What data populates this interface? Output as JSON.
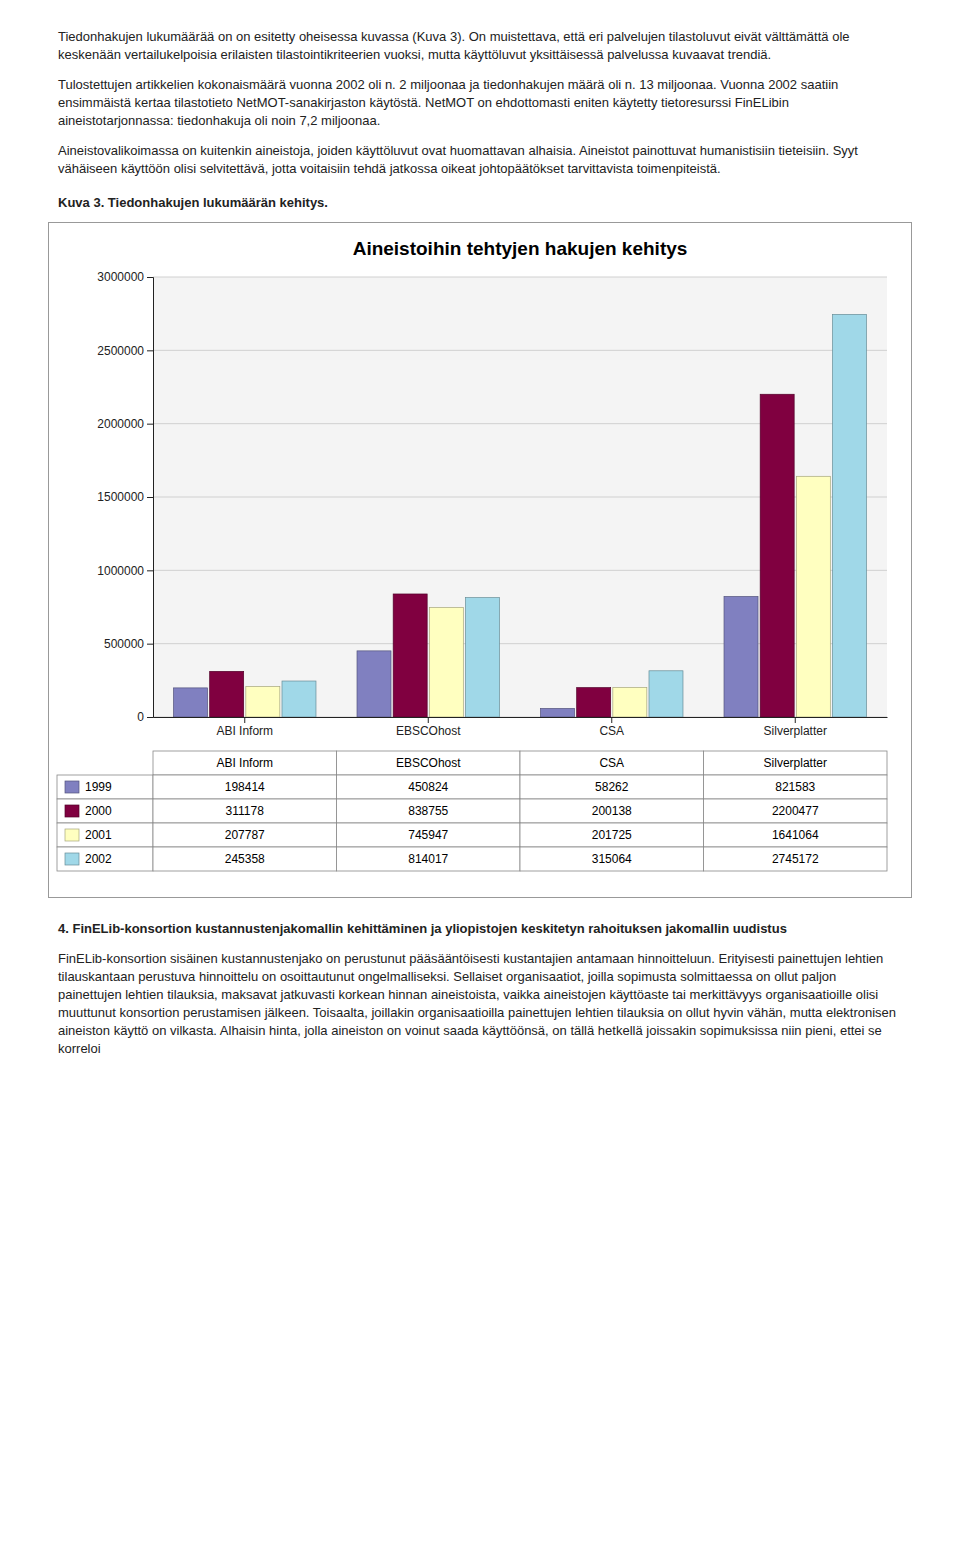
{
  "chart_data": {
    "type": "bar",
    "title": "Aineistoihin tehtyjen hakujen kehitys",
    "categories": [
      "ABI Inform",
      "EBSCOhost",
      "CSA",
      "Silverplatter"
    ],
    "series": [
      {
        "name": "1999",
        "color": "#8080C0",
        "values": [
          198414,
          450824,
          58262,
          821583
        ]
      },
      {
        "name": "2000",
        "color": "#800040",
        "values": [
          311178,
          838755,
          200138,
          2200477
        ]
      },
      {
        "name": "2001",
        "color": "#FFFFC0",
        "values": [
          207787,
          745947,
          201725,
          1641064
        ]
      },
      {
        "name": "2002",
        "color": "#A0D8E8",
        "values": [
          245358,
          814017,
          315064,
          2745172
        ]
      }
    ],
    "ylim": [
      0,
      3000000
    ],
    "yticks": [
      0,
      500000,
      1000000,
      1500000,
      2000000,
      2500000,
      3000000
    ],
    "grid": true
  },
  "paragraphs": [
    "Tiedonhakujen lukumäärää on on esitetty oheisessa kuvassa (Kuva 3). On muistettava, että eri palvelujen tilastoluvut eivät välttämättä ole keskenään vertailukelpoisia erilaisten tilastointikriteerien vuoksi, mutta käyttöluvut yksittäisessä palvelussa kuvaavat trendiä.",
    "Tulostettujen artikkelien kokonaismäärä vuonna 2002 oli n. 2 miljoonaa ja tiedonhakujen määrä oli n. 13 miljoonaa. Vuonna 2002 saatiin ensimmäistä kertaa tilastotieto NetMOT-sanakirjaston käytöstä. NetMOT on ehdottomasti eniten käytetty tietoresurssi FinELibin aineistotarjonnassa: tiedonhakuja oli noin 7,2 miljoonaa.",
    "Aineistovalikoimassa on kuitenkin aineistoja, joiden käyttöluvut ovat huomattavan alhaisia. Aineistot painottuvat humanistisiin tieteisiin. Syyt vähäiseen käyttöön olisi selvitettävä, jotta voitaisiin tehdä jatkossa oikeat johtopäätökset tarvittavista toimenpiteistä."
  ],
  "caption": "Kuva 3. Tiedonhakujen lukumäärän kehitys.",
  "section_title": "4. FinELib-konsortion kustannustenjakomallin kehittäminen ja yliopistojen keskitetyn rahoituksen jakomallin uudistus",
  "section_text": "FinELib-konsortion sisäinen kustannustenjako on perustunut pääsääntöisesti kustantajien antamaan hinnoitteluun. Erityisesti painettujen lehtien tilauskantaan perustuva hinnoittelu on osoittautunut ongelmalliseksi. Sellaiset organisaatiot, joilla sopimusta solmittaessa on ollut paljon painettujen lehtien tilauksia, maksavat jatkuvasti korkean hinnan aineistoista, vaikka aineistojen käyttöaste tai merkittävyys organisaatioille olisi muuttunut konsortion perustamisen jälkeen. Toisaalta, joillakin organisaatioilla painettujen lehtien tilauksia on ollut hyvin vähän, mutta elektronisen aineiston käyttö on vilkasta. Alhaisin hinta, jolla aineiston on voinut saada käyttöönsä, on tällä hetkellä joissakin sopimuksissa niin pieni, ettei se korreloi"
}
